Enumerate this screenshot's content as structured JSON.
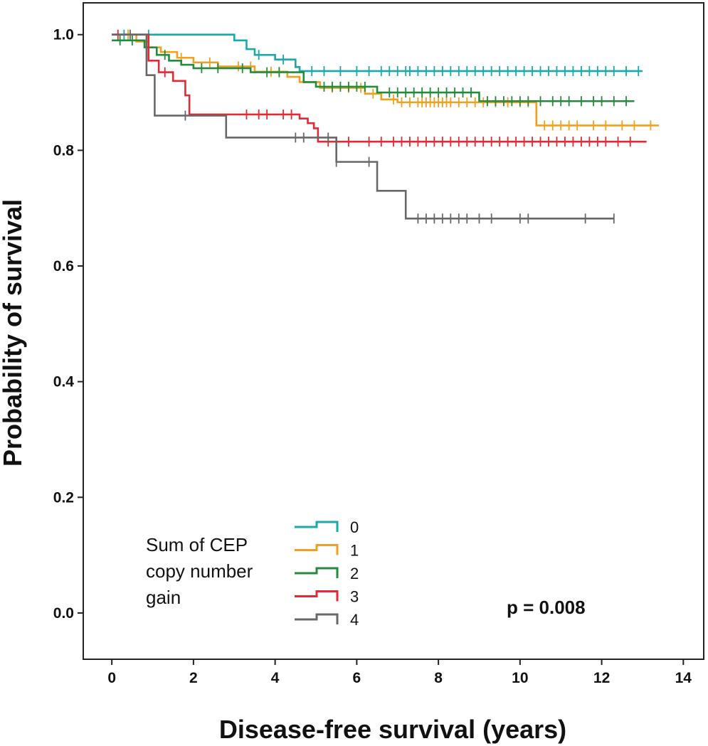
{
  "chart_data": {
    "type": "line",
    "subtype": "kaplan-meier",
    "xlabel": "Disease-free survival (years)",
    "ylabel": "Probability of survival",
    "xlim": [
      -0.7,
      14.5
    ],
    "ylim": [
      -0.08,
      1.055
    ],
    "xticks": [
      0,
      2,
      4,
      6,
      8,
      10,
      12,
      14
    ],
    "yticks": [
      0.0,
      0.2,
      0.4,
      0.6,
      0.8,
      1.0
    ],
    "xtick_labels": [
      "0",
      "2",
      "4",
      "6",
      "8",
      "10",
      "12",
      "14"
    ],
    "ytick_labels": [
      "0.0",
      "0.2",
      "0.4",
      "0.6",
      "0.8",
      "1.0"
    ],
    "legend_title_lines": [
      "Sum of CEP",
      "copy number",
      "gain"
    ],
    "annotation": "p = 0.008",
    "series": [
      {
        "name": "0",
        "color": "#1aa8a8",
        "steps": [
          [
            0,
            1.0
          ],
          [
            3.0,
            0.99
          ],
          [
            3.3,
            0.975
          ],
          [
            3.5,
            0.965
          ],
          [
            4.0,
            0.957
          ],
          [
            4.5,
            0.944
          ],
          [
            4.6,
            0.937
          ],
          [
            13.0,
            0.937
          ]
        ],
        "censors": [
          0.3,
          0.9,
          3.6,
          4.2,
          4.9,
          5.2,
          5.6,
          6.0,
          6.3,
          6.6,
          6.8,
          7.0,
          7.2,
          7.3,
          7.5,
          7.7,
          7.9,
          8.1,
          8.3,
          8.5,
          8.7,
          8.9,
          9.1,
          9.3,
          9.5,
          9.7,
          9.9,
          10.1,
          10.3,
          10.5,
          10.7,
          10.9,
          11.1,
          11.3,
          11.5,
          11.7,
          11.9,
          12.1,
          12.3,
          12.6,
          12.9
        ]
      },
      {
        "name": "1",
        "color": "#f0a020",
        "steps": [
          [
            0,
            1.0
          ],
          [
            0.6,
            0.988
          ],
          [
            0.9,
            0.978
          ],
          [
            1.2,
            0.97
          ],
          [
            1.6,
            0.96
          ],
          [
            2.0,
            0.952
          ],
          [
            2.6,
            0.945
          ],
          [
            3.5,
            0.936
          ],
          [
            4.3,
            0.927
          ],
          [
            4.6,
            0.918
          ],
          [
            5.1,
            0.908
          ],
          [
            6.2,
            0.898
          ],
          [
            6.6,
            0.888
          ],
          [
            7.0,
            0.883
          ],
          [
            10.4,
            0.843
          ],
          [
            13.4,
            0.843
          ]
        ],
        "censors": [
          0.4,
          1.7,
          2.4,
          3.1,
          3.4,
          3.9,
          4.1,
          5.4,
          5.8,
          6.1,
          6.4,
          6.9,
          7.1,
          7.3,
          7.5,
          7.6,
          7.7,
          7.8,
          7.9,
          8.0,
          8.1,
          8.2,
          8.3,
          8.5,
          8.7,
          8.9,
          9.1,
          9.4,
          9.7,
          10.0,
          10.2,
          10.6,
          10.8,
          11.0,
          11.2,
          11.4,
          11.8,
          12.1,
          12.5,
          12.8,
          13.2
        ]
      },
      {
        "name": "2",
        "color": "#228b3c",
        "steps": [
          [
            0,
            0.99
          ],
          [
            0.8,
            0.978
          ],
          [
            1.1,
            0.965
          ],
          [
            1.4,
            0.955
          ],
          [
            1.7,
            0.948
          ],
          [
            2.0,
            0.942
          ],
          [
            3.4,
            0.935
          ],
          [
            4.7,
            0.918
          ],
          [
            5.0,
            0.91
          ],
          [
            6.5,
            0.9
          ],
          [
            9.0,
            0.885
          ],
          [
            12.8,
            0.885
          ]
        ],
        "censors": [
          0.2,
          0.5,
          1.3,
          2.2,
          2.6,
          3.2,
          3.8,
          4.1,
          5.2,
          5.4,
          5.6,
          5.8,
          6.0,
          6.2,
          6.8,
          7.0,
          7.2,
          7.4,
          7.6,
          7.8,
          8.0,
          8.2,
          8.4,
          8.6,
          8.8,
          9.2,
          9.4,
          9.6,
          9.8,
          10.0,
          10.2,
          10.5,
          10.8,
          11.0,
          11.2,
          11.5,
          11.8,
          12.0,
          12.3,
          12.6
        ]
      },
      {
        "name": "3",
        "color": "#e02a35",
        "steps": [
          [
            0,
            1.0
          ],
          [
            0.9,
            0.955
          ],
          [
            1.15,
            0.935
          ],
          [
            1.5,
            0.92
          ],
          [
            1.8,
            0.895
          ],
          [
            1.9,
            0.862
          ],
          [
            4.6,
            0.855
          ],
          [
            4.8,
            0.847
          ],
          [
            4.95,
            0.838
          ],
          [
            5.05,
            0.815
          ],
          [
            13.1,
            0.815
          ]
        ],
        "censors": [
          0.15,
          1.3,
          3.3,
          3.6,
          3.8,
          4.2,
          4.4,
          5.3,
          5.5,
          5.8,
          6.3,
          6.6,
          6.9,
          7.1,
          7.3,
          7.5,
          7.7,
          7.9,
          8.1,
          8.3,
          8.5,
          8.7,
          8.9,
          9.1,
          9.3,
          9.5,
          9.7,
          9.9,
          10.1,
          10.3,
          10.5,
          10.7,
          10.9,
          11.1,
          11.3,
          11.5,
          11.7,
          11.9,
          12.1,
          12.4,
          12.7
        ]
      },
      {
        "name": "4",
        "color": "#686868",
        "steps": [
          [
            0,
            1.0
          ],
          [
            0.85,
            0.93
          ],
          [
            1.05,
            0.86
          ],
          [
            2.8,
            0.822
          ],
          [
            5.5,
            0.78
          ],
          [
            6.5,
            0.73
          ],
          [
            7.2,
            0.682
          ],
          [
            12.3,
            0.682
          ]
        ],
        "censors": [
          0.45,
          1.8,
          4.5,
          4.7,
          5.3,
          5.5,
          6.3,
          7.5,
          7.7,
          7.9,
          8.1,
          8.3,
          8.5,
          8.7,
          9.0,
          9.3,
          10.0,
          10.2,
          11.6,
          12.3
        ]
      }
    ]
  }
}
